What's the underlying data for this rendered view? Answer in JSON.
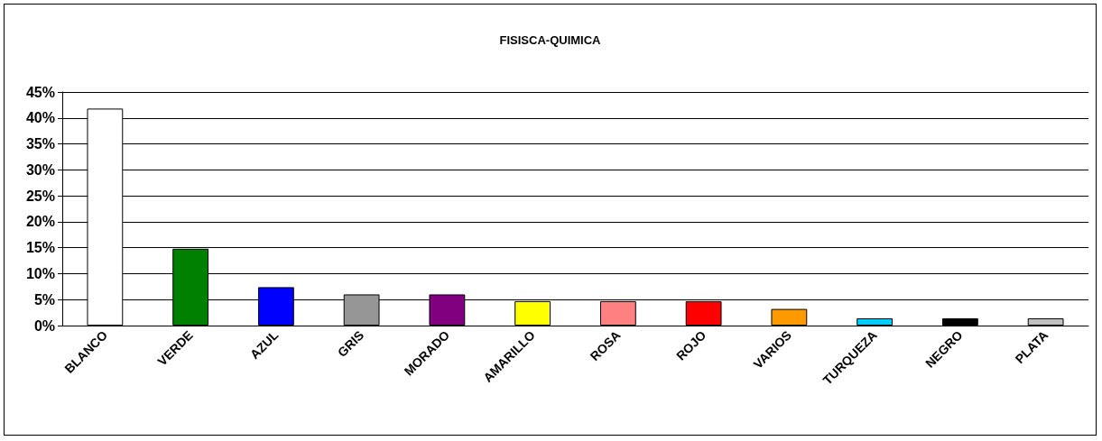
{
  "chart_data": {
    "type": "bar",
    "title": "FISISCA-QUIMICA",
    "categories": [
      "BLANCO",
      "VERDE",
      "AZUL",
      "GRIS",
      "MORADO",
      "AMARILLO",
      "ROSA",
      "ROJO",
      "VARIOS",
      "TURQUEZA",
      "NEGRO",
      "PLATA"
    ],
    "values": [
      41.8,
      14.8,
      7.4,
      6,
      6,
      4.7,
      4.7,
      4.7,
      3.2,
      1.4,
      1.4,
      1.4
    ],
    "colors": [
      "#ffffff",
      "#008000",
      "#0000ff",
      "#969696",
      "#800080",
      "#ffff00",
      "#ff8080",
      "#ff0000",
      "#ff9900",
      "#00ccff",
      "#000000",
      "#c0c0c0"
    ],
    "ylim": [
      0,
      45
    ],
    "yticks": [
      {
        "value": 0,
        "label": "0%"
      },
      {
        "value": 5,
        "label": "5%"
      },
      {
        "value": 10,
        "label": "10%"
      },
      {
        "value": 15,
        "label": "15%"
      },
      {
        "value": 20,
        "label": "20%"
      },
      {
        "value": 25,
        "label": "25%"
      },
      {
        "value": 30,
        "label": "30%"
      },
      {
        "value": 35,
        "label": "35%"
      },
      {
        "value": 40,
        "label": "40%"
      },
      {
        "value": 45,
        "label": "45%"
      }
    ],
    "grid": "y"
  }
}
